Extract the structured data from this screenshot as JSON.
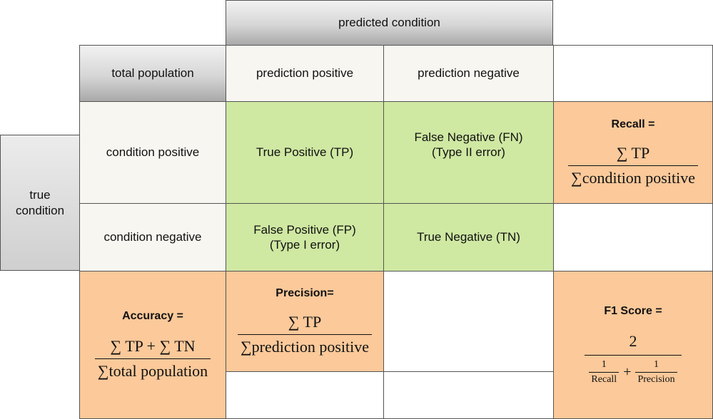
{
  "header": {
    "predicted_condition": "predicted condition",
    "true_condition_line1": "true",
    "true_condition_line2": "condition"
  },
  "columns": {
    "total_population": "total population",
    "prediction_positive": "prediction positive",
    "prediction_negative": "prediction negative"
  },
  "rows": {
    "condition_positive": "condition positive",
    "condition_negative": "condition negative"
  },
  "cells": {
    "tp": "True Positive (TP)",
    "fn_line1": "False Negative (FN)",
    "fn_line2": "(Type II error)",
    "fp_line1": "False Positive (FP)",
    "fp_line2": "(Type I error)",
    "tn": "True Negative (TN)"
  },
  "metrics": {
    "recall": {
      "title": "Recall =",
      "numerator": "∑ TP",
      "denominator": "∑condition positive"
    },
    "precision": {
      "title": "Precision=",
      "numerator": "∑ TP",
      "denominator": "∑prediction positive"
    },
    "accuracy": {
      "title": "Accuracy =",
      "numerator": "∑ TP + ∑ TN",
      "denominator": "∑total population"
    },
    "f1": {
      "title": "F1 Score =",
      "numerator": "2",
      "plus": "+",
      "term1_num": "1",
      "term1_den": "Recall",
      "term2_num": "1",
      "term2_den": "Precision"
    }
  },
  "colors": {
    "green": "#cfe8a2",
    "orange": "#fbc99a",
    "cream": "#f8f6f1",
    "gray": "#cfcfcf"
  }
}
